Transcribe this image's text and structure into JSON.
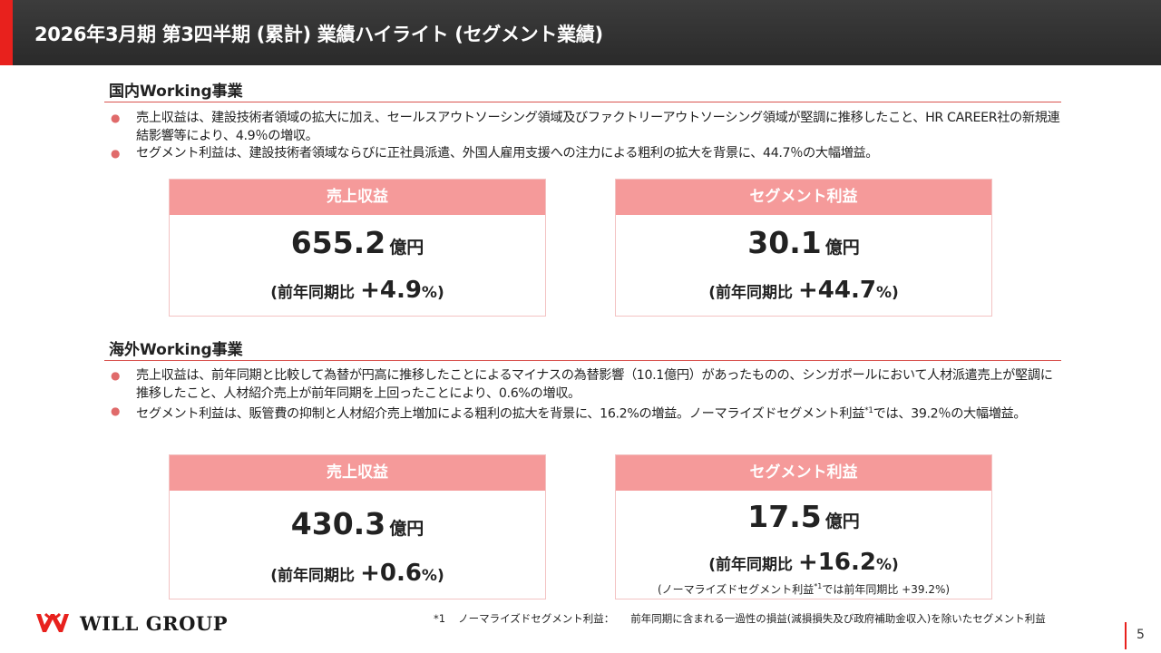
{
  "header": {
    "title": "2026年3月期 第3四半期 (累計) 業績ハイライト (セグメント業績)"
  },
  "domestic": {
    "title": "国内Working事業",
    "bullets": [
      "売上収益は、建設技術者領域の拡大に加え、セールスアウトソーシング領域及びファクトリーアウトソーシング領域が堅調に推移したこと、HR CAREER社の新規連結影響等により、4.9％の増収。",
      "セグメント利益は、建設技術者領域ならびに正社員派遣、外国人雇用支援への注力による粗利の拡大を背景に、44.7％の大幅増益。"
    ],
    "revenue_card": {
      "header": "売上収益",
      "value": "655.2",
      "unit": "億円",
      "yoy_label": "(前年同期比",
      "yoy_value": "+4.9",
      "yoy_suffix": "%)"
    },
    "profit_card": {
      "header": "セグメント利益",
      "value": "30.1",
      "unit": "億円",
      "yoy_label": "(前年同期比",
      "yoy_value": "+44.7",
      "yoy_suffix": "%)"
    }
  },
  "overseas": {
    "title": "海外Working事業",
    "bullet1": "売上収益は、前年同期と比較して為替が円高に推移したことによるマイナスの為替影響（10.1億円）があったものの、シンガポールにおいて人材派遣売上が堅調に推移したこと、人材紹介売上が前年同期を上回ったことにより、0.6%の増収。",
    "bullet2_a": "セグメント利益は、販管費の抑制と人材紹介売上増加による粗利の拡大を背景に、16.2%の増益。ノーマライズドセグメント利益",
    "bullet2_sup": "*1",
    "bullet2_b": "では、39.2％の大幅増益。",
    "revenue_card": {
      "header": "売上収益",
      "value": "430.3",
      "unit": "億円",
      "yoy_label": "(前年同期比",
      "yoy_value": "+0.6",
      "yoy_suffix": "%)"
    },
    "profit_card": {
      "header": "セグメント利益",
      "value": "17.5",
      "unit": "億円",
      "yoy_label": "(前年同期比",
      "yoy_value": "+16.2",
      "yoy_suffix": "%)",
      "note_a": "(ノーマライズドセグメント利益",
      "note_sup": "*1",
      "note_b": "では前年同期比 +39.2%)"
    }
  },
  "footer": {
    "logo_text": "WILL GROUP",
    "footnote_mark": "*1",
    "footnote_term": "ノーマライズドセグメント利益：",
    "footnote_text": "前年同期に含まれる一過性の損益(減損損失及び政府補助金収入)を除いたセグメント利益",
    "page_number": "5"
  },
  "colors": {
    "accent_red": "#e8211d",
    "card_header_pink": "#f59a9a",
    "header_dark": "#333333"
  }
}
